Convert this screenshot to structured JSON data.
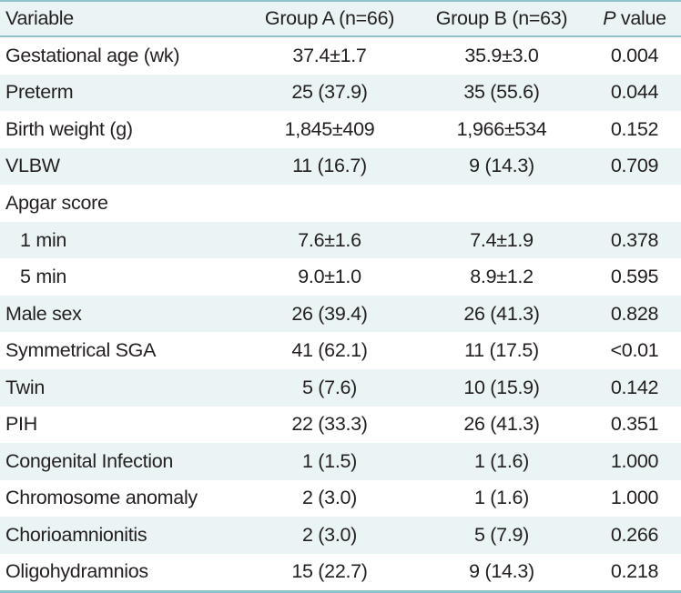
{
  "header": {
    "variable": "Variable",
    "group_a": "Group A (n=66)",
    "group_b": "Group B (n=63)",
    "p_italic": "P",
    "p_rest": " value"
  },
  "rows": [
    {
      "label": "Gestational age (wk)",
      "a": "37.4±1.7",
      "b": "35.9±3.0",
      "p": "0.004"
    },
    {
      "label": "Preterm",
      "a": "25 (37.9)",
      "b": "35 (55.6)",
      "p": "0.044"
    },
    {
      "label": "Birth weight (g)",
      "a": "1,845±409",
      "b": "1,966±534",
      "p": "0.152"
    },
    {
      "label": "VLBW",
      "a": "11 (16.7)",
      "b": "9 (14.3)",
      "p": "0.709"
    },
    {
      "label": "Apgar score",
      "a": "",
      "b": "",
      "p": ""
    },
    {
      "label": "1 min",
      "a": "7.6±1.6",
      "b": "7.4±1.9",
      "p": "0.378"
    },
    {
      "label": "5 min",
      "a": "9.0±1.0",
      "b": "8.9±1.2",
      "p": "0.595"
    },
    {
      "label": "Male sex",
      "a": "26 (39.4)",
      "b": "26 (41.3)",
      "p": "0.828"
    },
    {
      "label": "Symmetrical SGA",
      "a": "41 (62.1)",
      "b": "11 (17.5)",
      "p": "<0.01"
    },
    {
      "label": "Twin",
      "a": "5 (7.6)",
      "b": "10 (15.9)",
      "p": "0.142"
    },
    {
      "label": "PIH",
      "a": "22 (33.3)",
      "b": "26 (41.3)",
      "p": "0.351"
    },
    {
      "label": "Congenital Infection",
      "a": "1 (1.5)",
      "b": "1 (1.6)",
      "p": "1.000"
    },
    {
      "label": "Chromosome anomaly",
      "a": "2 (3.0)",
      "b": "1 (1.6)",
      "p": "1.000"
    },
    {
      "label": "Chorioamnionitis",
      "a": "2 (3.0)",
      "b": "5 (7.9)",
      "p": "0.266"
    },
    {
      "label": "Oligohydramnios",
      "a": "15 (22.7)",
      "b": "9 (14.3)",
      "p": "0.218"
    }
  ]
}
